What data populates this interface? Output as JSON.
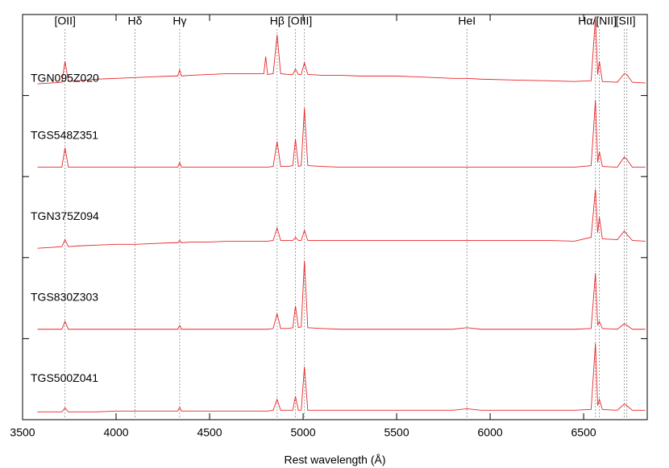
{
  "chart_data": [
    {
      "type": "line",
      "title": "TGN095Z020",
      "color": "#e8262a",
      "xlim": [
        3500,
        6840
      ],
      "ylim": [
        0,
        10
      ],
      "x": [
        3580,
        3650,
        3710,
        3727,
        3745,
        3800,
        3900,
        4000,
        4101,
        4200,
        4300,
        4330,
        4340,
        4350,
        4400,
        4500,
        4600,
        4700,
        4790,
        4800,
        4810,
        4840,
        4861,
        4880,
        4920,
        4945,
        4959,
        4975,
        4990,
        5007,
        5025,
        5100,
        5200,
        5300,
        5400,
        5500,
        5600,
        5700,
        5800,
        5876,
        5950,
        6100,
        6300,
        6450,
        6540,
        6563,
        6575,
        6584,
        6600,
        6680,
        6717,
        6731,
        6760,
        6830
      ],
      "values": [
        1.3,
        1.4,
        1.5,
        4.2,
        1.6,
        1.7,
        1.9,
        2.0,
        2.1,
        2.2,
        2.3,
        2.3,
        3.1,
        2.3,
        2.4,
        2.5,
        2.6,
        2.6,
        2.6,
        4.8,
        2.5,
        2.6,
        7.6,
        2.6,
        2.5,
        2.5,
        3.2,
        2.5,
        2.5,
        4.0,
        2.5,
        2.4,
        2.4,
        2.3,
        2.3,
        2.3,
        2.2,
        2.1,
        2.0,
        2.0,
        1.9,
        1.8,
        1.7,
        1.6,
        1.7,
        9.8,
        2.5,
        4.2,
        1.6,
        1.5,
        2.6,
        2.5,
        1.5,
        1.4
      ],
      "line_markers": [
        {
          "label": "[OII]",
          "x": [
            3727
          ]
        },
        {
          "label": "Hδ",
          "x": [
            4101
          ]
        },
        {
          "label": "Hγ",
          "x": [
            4340
          ]
        },
        {
          "label": "Hβ",
          "x": [
            4861
          ]
        },
        {
          "label": "[OIII]",
          "x": [
            4959,
            5007
          ]
        },
        {
          "label": "HeI",
          "x": [
            5876
          ]
        },
        {
          "label": "Hα/[NII]",
          "x": [
            6563,
            6584
          ]
        },
        {
          "label": "[SII]",
          "x": [
            6717,
            6731
          ]
        }
      ]
    },
    {
      "type": "line",
      "title": "TGS548Z351",
      "color": "#e8262a",
      "xlim": [
        3500,
        6840
      ],
      "ylim": [
        0,
        10
      ],
      "x": [
        3580,
        3650,
        3710,
        3727,
        3745,
        3800,
        3900,
        4000,
        4101,
        4200,
        4300,
        4330,
        4340,
        4350,
        4400,
        4500,
        4600,
        4700,
        4790,
        4800,
        4810,
        4840,
        4861,
        4880,
        4920,
        4945,
        4959,
        4975,
        4990,
        5007,
        5025,
        5100,
        5200,
        5300,
        5400,
        5500,
        5600,
        5700,
        5800,
        5876,
        5950,
        6100,
        6300,
        6450,
        6540,
        6563,
        6575,
        6584,
        6600,
        6680,
        6717,
        6731,
        6760,
        6830
      ],
      "values": [
        1,
        1,
        1,
        3.5,
        1,
        1,
        1,
        1,
        1,
        1,
        1,
        1,
        1.6,
        1,
        1,
        1,
        1,
        1,
        1,
        1,
        1,
        1.1,
        4.3,
        1.1,
        1.1,
        1.2,
        4.6,
        1.1,
        1.2,
        8.6,
        1.2,
        1.1,
        1,
        1,
        1,
        1,
        1,
        1,
        1,
        1,
        1,
        1,
        1,
        1,
        1.2,
        9.6,
        1.6,
        3.0,
        1.1,
        1,
        2.3,
        2.0,
        1,
        1
      ]
    },
    {
      "type": "line",
      "title": "TGN375Z094",
      "color": "#e8262a",
      "xlim": [
        3500,
        6840
      ],
      "ylim": [
        0,
        10
      ],
      "x": [
        3580,
        3650,
        3710,
        3727,
        3745,
        3800,
        3900,
        4000,
        4101,
        4200,
        4300,
        4330,
        4340,
        4350,
        4400,
        4500,
        4600,
        4700,
        4790,
        4800,
        4810,
        4840,
        4861,
        4880,
        4920,
        4945,
        4959,
        4975,
        4990,
        5007,
        5025,
        5100,
        5200,
        5300,
        5400,
        5500,
        5600,
        5700,
        5800,
        5876,
        5950,
        6100,
        6300,
        6450,
        6540,
        6563,
        6575,
        6584,
        6600,
        6680,
        6717,
        6731,
        6760,
        6830
      ],
      "values": [
        1,
        1.1,
        1.2,
        2.1,
        1.2,
        1.3,
        1.4,
        1.5,
        1.5,
        1.6,
        1.7,
        1.7,
        2.0,
        1.7,
        1.8,
        1.8,
        1.9,
        1.9,
        1.9,
        1.9,
        1.9,
        2.0,
        3.6,
        2.0,
        2.0,
        2.0,
        2.4,
        2.0,
        2.0,
        3.3,
        2.0,
        2.0,
        2.0,
        2.0,
        2.0,
        2.0,
        2.0,
        2.0,
        2.0,
        2.0,
        2.0,
        2.0,
        2.0,
        1.9,
        2.4,
        8.6,
        3.0,
        5.0,
        2.2,
        2.1,
        3.2,
        2.8,
        2.0,
        1.9
      ]
    },
    {
      "type": "line",
      "title": "TGS830Z303",
      "color": "#e8262a",
      "xlim": [
        3500,
        6840
      ],
      "ylim": [
        0,
        10
      ],
      "x": [
        3580,
        3650,
        3710,
        3727,
        3745,
        3800,
        3900,
        4000,
        4101,
        4200,
        4300,
        4330,
        4340,
        4350,
        4400,
        4500,
        4600,
        4700,
        4790,
        4800,
        4810,
        4840,
        4861,
        4880,
        4920,
        4945,
        4959,
        4975,
        4990,
        5007,
        5025,
        5100,
        5200,
        5300,
        5400,
        5500,
        5600,
        5700,
        5800,
        5876,
        5950,
        6100,
        6300,
        6450,
        6540,
        6563,
        6575,
        6584,
        6600,
        6680,
        6717,
        6731,
        6760,
        6830
      ],
      "values": [
        1,
        1,
        1,
        2,
        1,
        1,
        1,
        1,
        1,
        1,
        1,
        1,
        1.5,
        1,
        1,
        1,
        1,
        1,
        1,
        1,
        1,
        1.1,
        3.0,
        1.1,
        1.1,
        1.2,
        4.0,
        1.2,
        1.3,
        9.8,
        1.2,
        1.1,
        1,
        1,
        1,
        1,
        1,
        1,
        1,
        1.2,
        1,
        1,
        1,
        1,
        1.1,
        8.2,
        1.5,
        2.0,
        1.1,
        1,
        1.7,
        1.5,
        1,
        1
      ]
    },
    {
      "type": "line",
      "title": "TGS500Z041",
      "color": "#e8262a",
      "xlim": [
        3500,
        6840
      ],
      "ylim": [
        0,
        10
      ],
      "x": [
        3580,
        3650,
        3710,
        3727,
        3745,
        3800,
        3900,
        4000,
        4101,
        4200,
        4300,
        4330,
        4340,
        4350,
        4400,
        4500,
        4600,
        4700,
        4790,
        4800,
        4810,
        4840,
        4861,
        4880,
        4920,
        4945,
        4959,
        4975,
        4990,
        5007,
        5025,
        5100,
        5200,
        5300,
        5400,
        5500,
        5600,
        5700,
        5800,
        5876,
        5950,
        6100,
        6300,
        6450,
        6540,
        6563,
        6575,
        6584,
        6600,
        6680,
        6717,
        6731,
        6760,
        6830
      ],
      "values": [
        0.8,
        0.8,
        0.8,
        1.3,
        0.8,
        0.8,
        0.8,
        0.9,
        0.9,
        0.9,
        0.9,
        0.9,
        1.4,
        0.9,
        0.9,
        0.9,
        0.9,
        0.9,
        0.9,
        0.9,
        0.9,
        1.0,
        2.4,
        1.0,
        1.0,
        1.0,
        2.8,
        1.0,
        1.0,
        6.6,
        1.0,
        1.0,
        1.0,
        1.0,
        1.0,
        1.0,
        1.0,
        1.0,
        1.0,
        1.2,
        1.0,
        1.0,
        1.0,
        1.0,
        1.1,
        9.6,
        1.6,
        2.4,
        1.1,
        1.0,
        1.8,
        1.6,
        1.0,
        1.0
      ],
      "xlabel": "Rest wavelength (Å)",
      "xticks": [
        3500,
        4000,
        4500,
        5000,
        5500,
        6000,
        6500
      ]
    }
  ]
}
